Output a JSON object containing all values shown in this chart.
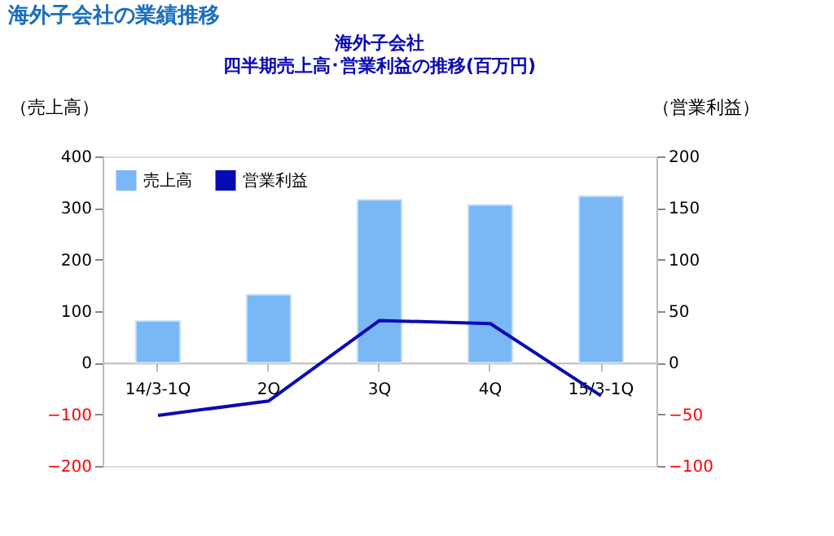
{
  "chart_data": {
    "type": "bar",
    "title": "海外子会社",
    "subtitle": "四半期売上高･営業利益の推移(百万円)",
    "ylabel": "（売上高）",
    "y2label": "（営業利益）",
    "annotations": [
      "海外子会社の業績推移"
    ],
    "categories": [
      "14/3-1Q",
      "2Q",
      "3Q",
      "4Q",
      "15/3-1Q"
    ],
    "series": [
      {
        "name": "売上高",
        "color": "#7ab8f5",
        "values": [
          81,
          132,
          316,
          306,
          323
        ]
      },
      {
        "name": "営業利益",
        "type": "line",
        "axis": "y2",
        "color": "#0a0ab4",
        "values": [
          -51,
          -37,
          41,
          38,
          -32
        ]
      }
    ],
    "ylim": [
      -200,
      400
    ],
    "yticks": [
      -200,
      -100,
      0,
      100,
      200,
      300,
      400
    ],
    "y2lim": [
      -100,
      200
    ],
    "y2ticks": [
      -100,
      -50,
      0,
      50,
      100,
      150,
      200
    ],
    "grid": false,
    "legend": "top left"
  }
}
